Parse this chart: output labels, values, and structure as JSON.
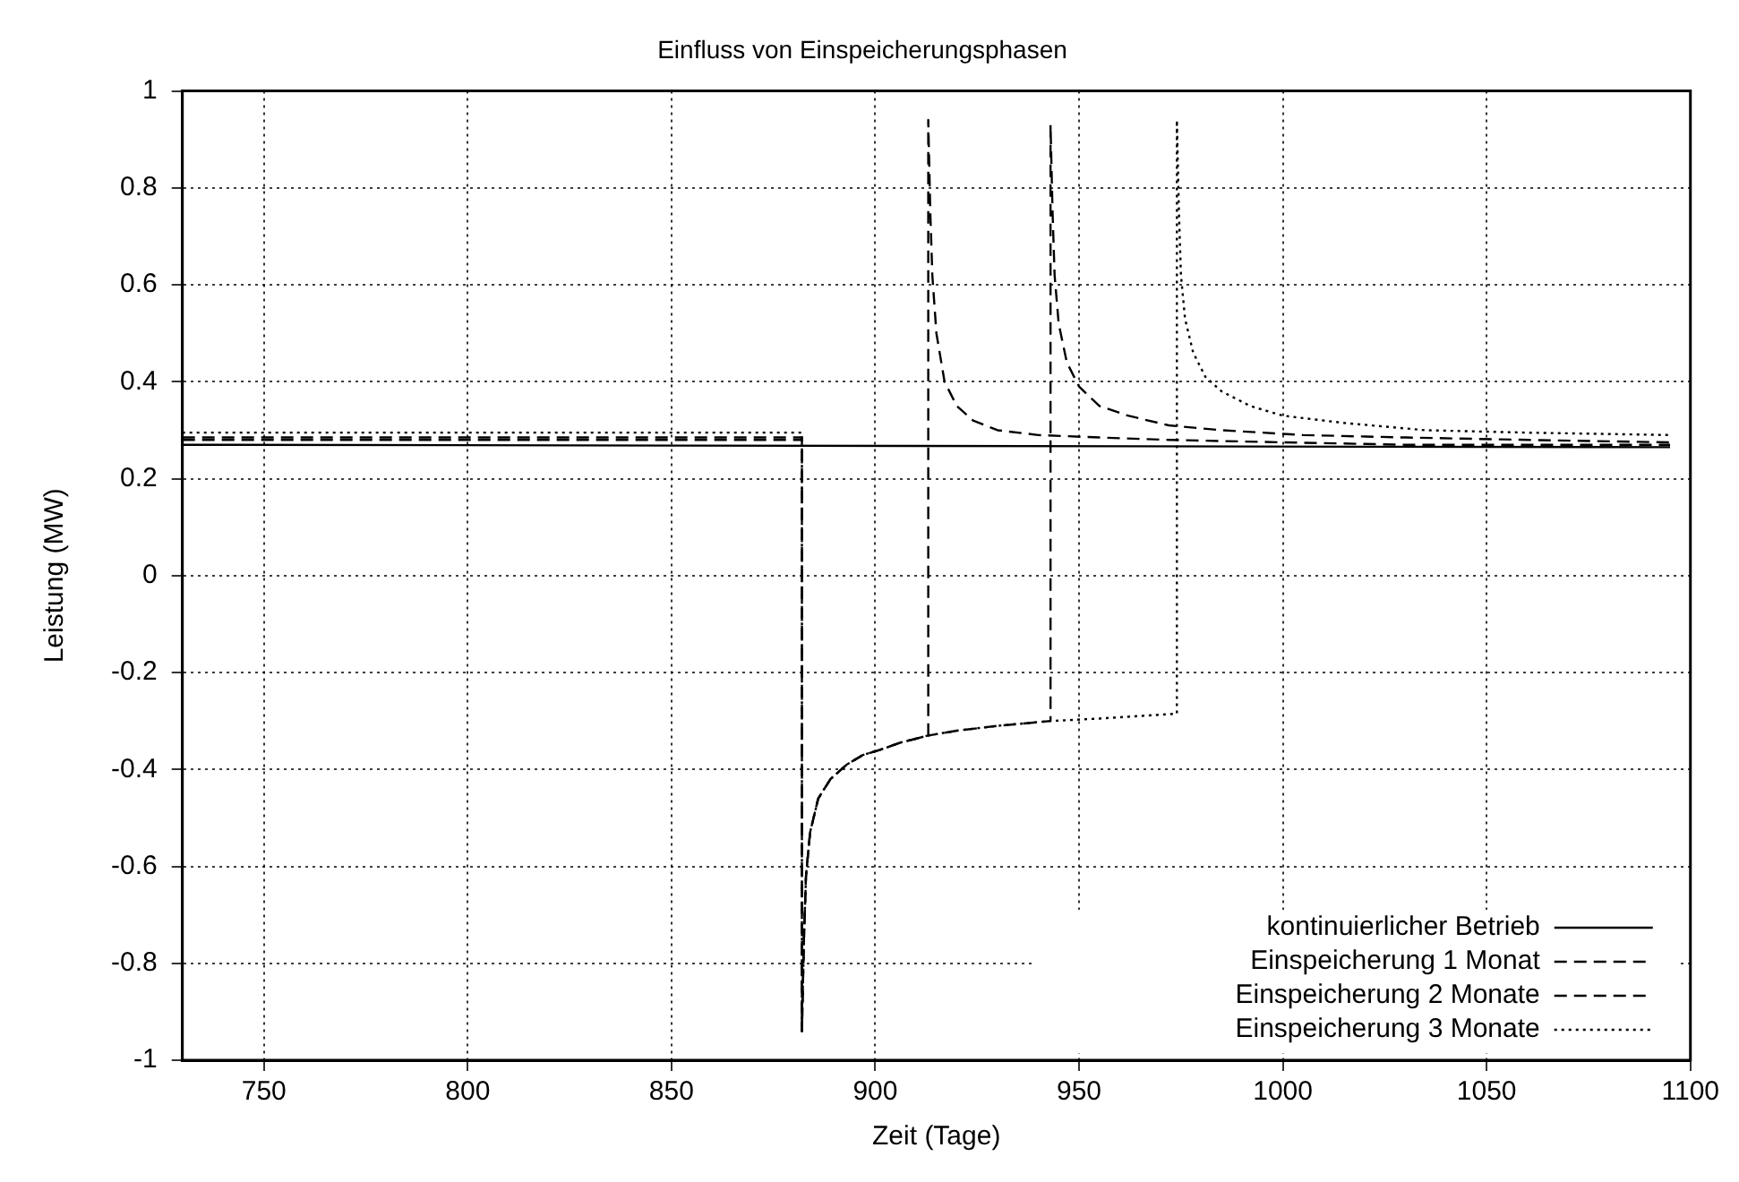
{
  "chart_data": {
    "type": "line",
    "title": "Einfluss von Einspeicherungsphasen",
    "xlabel": "Zeit (Tage)",
    "ylabel": "Leistung (MW)",
    "xlim": [
      730,
      1100
    ],
    "xticks": [
      750,
      800,
      850,
      900,
      950,
      1000,
      1050,
      1100
    ],
    "ylim": [
      -1,
      1
    ],
    "yticks": [
      -1,
      -0.8,
      -0.6,
      -0.4,
      -0.2,
      0,
      0.2,
      0.4,
      0.6,
      0.8,
      1
    ],
    "grid": true,
    "legend": "bottom right",
    "marker": "none",
    "series": [
      {
        "name": "kontinuierlicher Betrieb",
        "color": "#000000",
        "line_style": "solid",
        "x": [
          730,
          1095
        ],
        "values": [
          0.27,
          0.265
        ]
      },
      {
        "name": "Einspeicherung 1 Monat",
        "color": "#000000",
        "line_style": "dashed",
        "x": [
          730,
          882,
          882,
          882.5,
          883,
          884,
          886,
          889,
          893,
          897,
          901,
          906,
          913,
          913,
          913.5,
          914,
          915,
          917,
          920,
          924,
          930,
          940,
          955,
          972,
          1000,
          1030,
          1060,
          1095
        ],
        "values": [
          0.28,
          0.28,
          -0.94,
          -0.75,
          -0.62,
          -0.53,
          -0.46,
          -0.42,
          -0.39,
          -0.37,
          -0.36,
          -0.345,
          -0.33,
          0.94,
          0.75,
          0.62,
          0.5,
          0.4,
          0.35,
          0.32,
          0.3,
          0.29,
          0.285,
          0.28,
          0.275,
          0.27,
          0.27,
          0.27
        ]
      },
      {
        "name": "Einspeicherung 2 Monate",
        "color": "#000000",
        "line_style": "dashed",
        "x": [
          730,
          882,
          882,
          882.5,
          883,
          884,
          886,
          889,
          893,
          897,
          901,
          906,
          913,
          920,
          930,
          943,
          943,
          943.5,
          944,
          945,
          947,
          950,
          955,
          962,
          972,
          985,
          1005,
          1030,
          1060,
          1095
        ],
        "values": [
          0.285,
          0.285,
          -0.94,
          -0.75,
          -0.62,
          -0.53,
          -0.46,
          -0.42,
          -0.39,
          -0.37,
          -0.36,
          -0.345,
          -0.33,
          -0.32,
          -0.31,
          -0.3,
          0.93,
          0.75,
          0.62,
          0.52,
          0.44,
          0.39,
          0.35,
          0.33,
          0.31,
          0.3,
          0.29,
          0.285,
          0.28,
          0.275
        ]
      },
      {
        "name": "Einspeicherung 3 Monate",
        "color": "#000000",
        "line_style": "dotted",
        "x": [
          730,
          882,
          882,
          882.5,
          883,
          884,
          886,
          889,
          893,
          897,
          901,
          906,
          913,
          920,
          930,
          943,
          955,
          974,
          974,
          974.5,
          975,
          976,
          978,
          981,
          985,
          992,
          1000,
          1015,
          1035,
          1060,
          1095
        ],
        "values": [
          0.295,
          0.295,
          -0.94,
          -0.75,
          -0.62,
          -0.53,
          -0.46,
          -0.42,
          -0.39,
          -0.37,
          -0.36,
          -0.345,
          -0.33,
          -0.32,
          -0.31,
          -0.3,
          -0.295,
          -0.285,
          0.94,
          0.75,
          0.62,
          0.53,
          0.46,
          0.41,
          0.38,
          0.35,
          0.33,
          0.315,
          0.3,
          0.295,
          0.29
        ]
      }
    ]
  }
}
